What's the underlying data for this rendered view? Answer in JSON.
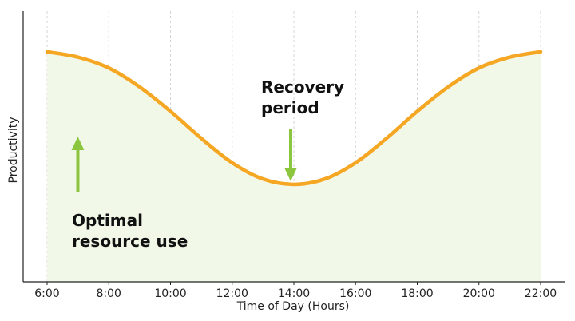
{
  "chart_data": {
    "type": "area",
    "title": "",
    "xlabel": "Time of Day (Hours)",
    "ylabel": "Productivity",
    "x_ticks": [
      "6:00",
      "8:00",
      "10:00",
      "12:00",
      "14:00",
      "16:00",
      "18:00",
      "20:00",
      "22:00"
    ],
    "xlim": [
      6,
      22
    ],
    "ylim": [
      0,
      1
    ],
    "grid": "vertical dashed",
    "series": [
      {
        "x": [
          6,
          7,
          8,
          9,
          10,
          11,
          12,
          13,
          14,
          15,
          16,
          17,
          18,
          19,
          20,
          21,
          22
        ],
        "y": [
          0.85,
          0.83,
          0.79,
          0.72,
          0.63,
          0.53,
          0.44,
          0.38,
          0.36,
          0.38,
          0.44,
          0.53,
          0.63,
          0.72,
          0.79,
          0.83,
          0.85
        ]
      }
    ],
    "colors": {
      "line": "#f5a623",
      "fill": "#f1f8e8",
      "arrow": "#8cc63f",
      "grid": "#d4d4d4"
    },
    "annotations": [
      {
        "lines": [
          "Optimal",
          "resource use"
        ],
        "x": 7.1,
        "arrow": "up"
      },
      {
        "lines": [
          "Recovery",
          "period"
        ],
        "x": 14.0,
        "arrow": "down"
      }
    ]
  }
}
